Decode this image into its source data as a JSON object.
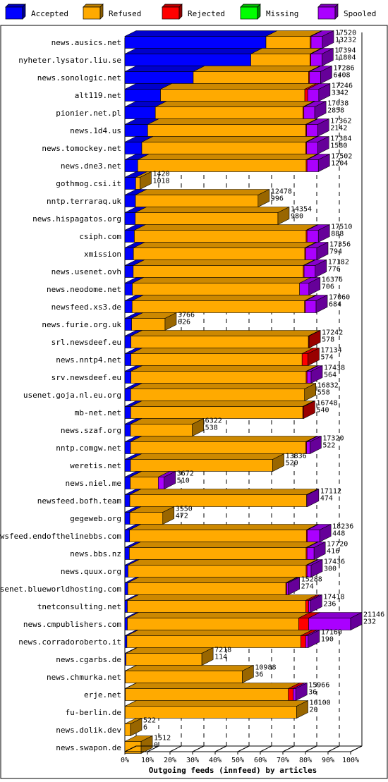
{
  "chart_data": {
    "type": "bar",
    "orientation": "horizontal",
    "stacked": true,
    "style": "3d",
    "xlabel": "Outgoing feeds (innfeed) by articles",
    "ylabel": "",
    "xlim": [
      0,
      100
    ],
    "x_unit": "percent",
    "x_ticks": [
      "0%",
      "10%",
      "20%",
      "30%",
      "40%",
      "50%",
      "60%",
      "70%",
      "80%",
      "90%",
      "100%"
    ],
    "legend_position": "top",
    "legend": [
      {
        "name": "Accepted",
        "color": "#0000ff"
      },
      {
        "name": "Refused",
        "color": "#ffaa00"
      },
      {
        "name": "Rejected",
        "color": "#ff0000"
      },
      {
        "name": "Missing",
        "color": "#00ff00"
      },
      {
        "name": "Spooled",
        "color": "#aa00ff"
      }
    ],
    "grid": true,
    "rows": [
      {
        "label": "news.ausics.net",
        "offered": "17520",
        "accepted": "13232",
        "segments": [
          62.5,
          19.6,
          0.4,
          0,
          5.0
        ]
      },
      {
        "label": "nyheter.lysator.liu.se",
        "offered": "17394",
        "accepted": "11804",
        "segments": [
          55.8,
          26.2,
          0.4,
          0,
          4.9
        ]
      },
      {
        "label": "news.sonologic.net",
        "offered": "17286",
        "accepted": "6408",
        "segments": [
          30.3,
          51.1,
          0.4,
          0,
          4.9
        ]
      },
      {
        "label": "alt119.net",
        "offered": "17246",
        "accepted": "3342",
        "segments": [
          15.8,
          63.9,
          1.3,
          0,
          4.9
        ]
      },
      {
        "label": "pionier.net.pl",
        "offered": "17038",
        "accepted": "2858",
        "segments": [
          13.5,
          65.4,
          0.4,
          0,
          4.8
        ]
      },
      {
        "label": "news.1d4.us",
        "offered": "17362",
        "accepted": "2142",
        "segments": [
          10.1,
          70.0,
          0.4,
          0,
          4.9
        ]
      },
      {
        "label": "news.tomockey.net",
        "offered": "17384",
        "accepted": "1580",
        "segments": [
          7.5,
          72.6,
          0.4,
          0,
          4.9
        ]
      },
      {
        "label": "news.dne3.net",
        "offered": "17502",
        "accepted": "1204",
        "segments": [
          5.7,
          74.6,
          0.4,
          0,
          5.0
        ]
      },
      {
        "label": "gothmog.csi.it",
        "offered": "1420",
        "accepted": "1018",
        "segments": [
          4.8,
          1.9,
          0,
          0,
          0
        ]
      },
      {
        "label": "nntp.terraraq.uk",
        "offered": "12478",
        "accepted": "996",
        "segments": [
          4.7,
          54.3,
          0,
          0,
          0
        ]
      },
      {
        "label": "news.hispagatos.org",
        "offered": "14354",
        "accepted": "980",
        "segments": [
          4.6,
          63.2,
          0,
          0,
          0
        ]
      },
      {
        "label": "csiph.com",
        "offered": "17510",
        "accepted": "888",
        "segments": [
          4.2,
          76.1,
          0.4,
          0,
          5.0
        ]
      },
      {
        "label": "xmission",
        "offered": "17356",
        "accepted": "794",
        "segments": [
          3.8,
          75.9,
          0.4,
          0,
          4.9
        ]
      },
      {
        "label": "news.usenet.ovh",
        "offered": "17182",
        "accepted": "776",
        "segments": [
          3.7,
          75.3,
          0.4,
          0,
          4.9
        ]
      },
      {
        "label": "news.neodome.net",
        "offered": "16376",
        "accepted": "706",
        "segments": [
          3.3,
          74.1,
          0,
          0,
          4.1
        ]
      },
      {
        "label": "newsfeed.xs3.de",
        "offered": "17060",
        "accepted": "684",
        "segments": [
          3.2,
          76.4,
          0.4,
          0,
          4.7
        ]
      },
      {
        "label": "news.furie.org.uk",
        "offered": "3766",
        "accepted": "626",
        "segments": [
          3.0,
          14.8,
          0,
          0,
          0
        ]
      },
      {
        "label": "srl.newsdeef.eu",
        "offered": "17242",
        "accepted": "578",
        "segments": [
          2.7,
          78.6,
          0.3,
          0,
          0
        ]
      },
      {
        "label": "news.nntp4.net",
        "offered": "17134",
        "accepted": "574",
        "segments": [
          2.7,
          75.8,
          2.6,
          0,
          0
        ]
      },
      {
        "label": "srv.newsdeef.eu",
        "offered": "17438",
        "accepted": "564",
        "segments": [
          2.7,
          77.6,
          0.4,
          0,
          1.8
        ]
      },
      {
        "label": "usenet.goja.nl.eu.org",
        "offered": "16832",
        "accepted": "558",
        "segments": [
          2.6,
          77.0,
          0,
          0,
          0
        ]
      },
      {
        "label": "mb-net.net",
        "offered": "16748",
        "accepted": "540",
        "segments": [
          2.6,
          76.2,
          0.4,
          0,
          0
        ]
      },
      {
        "label": "news.szaf.org",
        "offered": "6322",
        "accepted": "538",
        "segments": [
          2.5,
          27.4,
          0,
          0,
          0
        ]
      },
      {
        "label": "nntp.comgw.net",
        "offered": "17320",
        "accepted": "522",
        "segments": [
          2.5,
          77.6,
          0.4,
          0,
          1.5
        ]
      },
      {
        "label": "weretis.net",
        "offered": "13836",
        "accepted": "520",
        "segments": [
          2.5,
          63.0,
          0,
          0,
          0
        ]
      },
      {
        "label": "news.niel.me",
        "offered": "3672",
        "accepted": "510",
        "segments": [
          2.4,
          12.4,
          0,
          0,
          2.6
        ]
      },
      {
        "label": "newsfeed.bofh.team",
        "offered": "17112",
        "accepted": "474",
        "segments": [
          2.2,
          78.3,
          0,
          0,
          0.4
        ]
      },
      {
        "label": "gegeweb.org",
        "offered": "3550",
        "accepted": "472",
        "segments": [
          2.2,
          14.6,
          0,
          0,
          0
        ]
      },
      {
        "label": "newsfeed.endofthelinebbs.com",
        "offered": "18236",
        "accepted": "448",
        "segments": [
          2.1,
          78.3,
          0.4,
          0,
          5.5
        ]
      },
      {
        "label": "news.bbs.nz",
        "offered": "17720",
        "accepted": "416",
        "segments": [
          2.0,
          78.3,
          0.4,
          0,
          3.1
        ]
      },
      {
        "label": "news.quux.org",
        "offered": "17436",
        "accepted": "300",
        "segments": [
          1.4,
          78.9,
          0.4,
          0,
          1.8
        ]
      },
      {
        "label": "usenet.blueworldhosting.com",
        "offered": "15288",
        "accepted": "274",
        "segments": [
          1.3,
          70.0,
          0.4,
          0,
          0.7
        ]
      },
      {
        "label": "tnetconsulting.net",
        "offered": "17418",
        "accepted": "236",
        "segments": [
          1.1,
          79.0,
          1.3,
          0,
          0.9
        ]
      },
      {
        "label": "news.cmpublishers.com",
        "offered": "21146",
        "accepted": "232",
        "segments": [
          1.1,
          75.9,
          4.4,
          0,
          18.6
        ]
      },
      {
        "label": "news.corradoroberto.it",
        "offered": "17160",
        "accepted": "190",
        "segments": [
          0.9,
          77.0,
          2.2,
          0,
          1.1
        ]
      },
      {
        "label": "news.cgarbs.de",
        "offered": "7218",
        "accepted": "114",
        "segments": [
          0.5,
          33.6,
          0,
          0,
          0
        ]
      },
      {
        "label": "news.chmurka.net",
        "offered": "10988",
        "accepted": "36",
        "segments": [
          0.2,
          51.8,
          0,
          0,
          0
        ]
      },
      {
        "label": "erje.net",
        "offered": "15966",
        "accepted": "36",
        "segments": [
          0.2,
          72.2,
          2.2,
          0,
          1.1
        ]
      },
      {
        "label": "fu-berlin.de",
        "offered": "16100",
        "accepted": "20",
        "segments": [
          0.1,
          76.0,
          0,
          0,
          0
        ]
      },
      {
        "label": "news.dolik.dev",
        "offered": "522",
        "accepted": "6",
        "segments": [
          0,
          2.5,
          0,
          0,
          0
        ]
      },
      {
        "label": "news.swapon.de",
        "offered": "1512",
        "accepted": "0",
        "segments": [
          0,
          7.2,
          0,
          0,
          0
        ]
      }
    ]
  }
}
